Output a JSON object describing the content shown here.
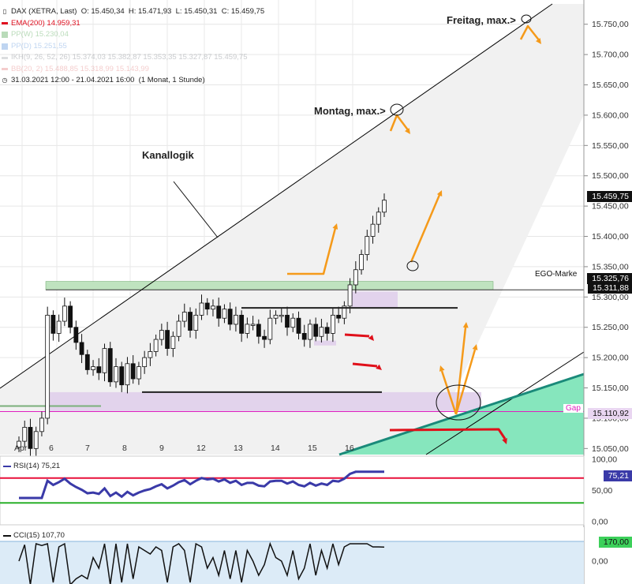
{
  "legend": {
    "header": {
      "instrument": "DAX (XETRA, Last)",
      "o": "O: 15.450,34",
      "h": "H: 15.471,93",
      "l": "L: 15.450,31",
      "c": "C: 15.459,75"
    },
    "rows": [
      {
        "label": "EMA(200)",
        "value": "14.959,31",
        "color": "#e01020"
      },
      {
        "label": "PP(W)",
        "value": "15.230,04",
        "color": "#3a9a3a"
      },
      {
        "label": "PP(D)",
        "value": "15.251,55",
        "color": "#4a88d8"
      },
      {
        "label": "IKH(9, 26, 52, 26)",
        "value": "15.374,03   15.382,87   15.353,35   15.327,87   15.459,75",
        "color": "#9aa0a6"
      },
      {
        "label": "BB(20, 2)",
        "value": "15.488,85   15.318,99   15.143,99",
        "color": "#e07070"
      }
    ],
    "range": "31.03.2021 12:00 - 21.04.2021 16:00",
    "period": "(1 Monat, 1 Stunde)"
  },
  "annotations": {
    "kanallogik": "Kanallogik",
    "montag": "Montag, max.>",
    "freitag": "Freitag, max.>",
    "ego_marke": "EGO-Marke",
    "gap": "Gap"
  },
  "price_tags": {
    "last": "15.459,75",
    "ego_upper": "15.325,76",
    "ego_lower": "15.311,88",
    "gap": "15.110,92"
  },
  "rsi": {
    "label": "RSI(14)",
    "value": "75,21",
    "tag": "75,21",
    "line_color": "#3a3aa8"
  },
  "cci": {
    "label": "CCI(15)",
    "value": "107,70",
    "tag": "170,00",
    "line_color": "#111111"
  },
  "colors": {
    "candle_up": "#ffffff",
    "candle_down": "#111111",
    "channel": "#000000",
    "ego_zone": "#bfe3bf",
    "gap_zone": "#e2d3ec",
    "arrow": "#f59a1a",
    "red_arrow": "#e0101a",
    "teal": "#1a8a7a",
    "teal_fill": "#86e6bd",
    "rsi_red": "#e8103a",
    "rsi_green": "#2ab02a"
  },
  "chart_data": {
    "type": "candlestick",
    "title": "DAX (XETRA, Last)",
    "interval": "1 Stunde",
    "x_labels": [
      "Apr",
      "6",
      "7",
      "8",
      "9",
      "12",
      "13",
      "14",
      "15",
      "16"
    ],
    "y_ticks": [
      15050,
      15100,
      15150,
      15200,
      15250,
      15300,
      15350,
      15400,
      15450,
      15500,
      15550,
      15600,
      15650,
      15700,
      15750
    ],
    "y_tick_labels": [
      "15.050,00",
      "15.100,00",
      "15.150,00",
      "15.200,00",
      "15.250,00",
      "15.300,00",
      "15.350,00",
      "15.400,00",
      "15.450,00",
      "15.500,00",
      "15.550,00",
      "15.600,00",
      "15.650,00",
      "15.700,00",
      "15.750,00"
    ],
    "ylim": [
      15040,
      15790
    ],
    "grid": true,
    "series": [
      {
        "name": "DAX (XETRA, Last)",
        "type": "ohlc",
        "close": [
          15062,
          15085,
          15050,
          15078,
          15100,
          15270,
          15240,
          15260,
          15285,
          15250,
          15225,
          15205,
          15180,
          15185,
          15175,
          15215,
          15160,
          15185,
          15155,
          15190,
          15165,
          15185,
          15200,
          15210,
          15230,
          15245,
          15215,
          15235,
          15260,
          15275,
          15245,
          15270,
          15290,
          15280,
          15285,
          15265,
          15280,
          15255,
          15270,
          15240,
          15255,
          15255,
          15235,
          15230,
          15265,
          15270,
          15270,
          15250,
          15265,
          15240,
          15230,
          15255,
          15235,
          15250,
          15240,
          15270,
          15265,
          15285,
          15320,
          15345,
          15370,
          15400,
          15420,
          15440,
          15459.75
        ]
      },
      {
        "name": "EMA(200)",
        "value": 14959.31
      },
      {
        "name": "PP(W)",
        "value": 15230.04
      },
      {
        "name": "PP(D)",
        "value": 15251.55
      },
      {
        "name": "BB(20, 2)",
        "values": [
          15488.85,
          15318.99,
          15143.99
        ]
      }
    ],
    "levels": {
      "ego_marke": [
        15311.88,
        15325.76
      ],
      "gap": 15110.92
    },
    "panels": [
      {
        "name": "RSI(14)",
        "value": 75.21,
        "y_ticks": [
          "100,00",
          "50,00",
          "0,00"
        ],
        "levels": [
          70,
          30
        ]
      },
      {
        "name": "CCI(15)",
        "value": 107.7,
        "y_ticks": [
          "0,00"
        ],
        "levels": [
          170
        ]
      }
    ]
  }
}
